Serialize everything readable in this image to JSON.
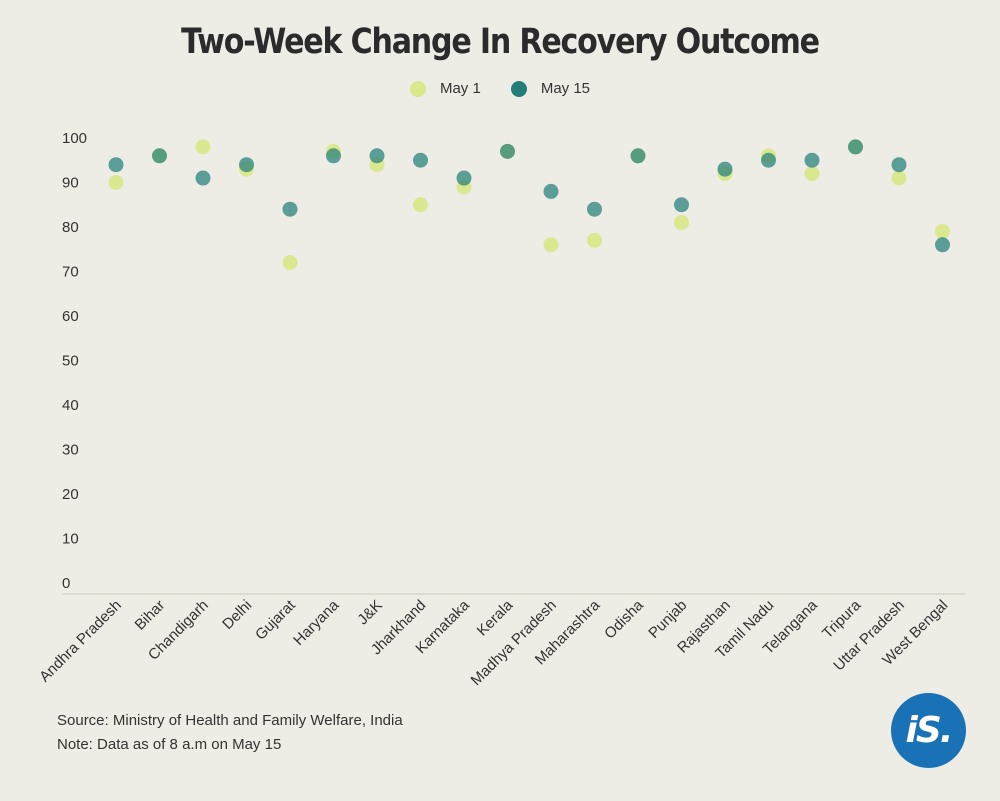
{
  "title": "Two-Week Change In Recovery Outcome",
  "legend": [
    {
      "label": "May 1",
      "color": "#d8e88a"
    },
    {
      "label": "May 15",
      "color": "#237e79"
    }
  ],
  "footer": {
    "source": "Source: Ministry of Health and Family Welfare, India",
    "note": "Note: Data as of 8 a.m on May 15"
  },
  "logo_text": "iS.",
  "chart_data": {
    "type": "scatter",
    "title": "Two-Week Change In Recovery Outcome",
    "categories": [
      "Andhra Pradesh",
      "Bihar",
      "Chandigarh",
      "Delhi",
      "Gujarat",
      "Haryana",
      "J&K",
      "Jharkhand",
      "Karnataka",
      "Kerala",
      "Madhya Pradesh",
      "Maharashtra",
      "Odisha",
      "Punjab",
      "Rajasthan",
      "Tamil Nadu",
      "Telangana",
      "Tripura",
      "Uttar Pradesh",
      "West Bengal"
    ],
    "series": [
      {
        "name": "May 1",
        "color": "#d8e88a",
        "values": [
          90,
          96,
          98,
          93,
          72,
          97,
          94,
          85,
          89,
          97,
          76,
          77,
          96,
          81,
          92,
          96,
          92,
          98,
          91,
          79
        ]
      },
      {
        "name": "May 15",
        "color": "#237e79",
        "values": [
          94,
          96,
          91,
          94,
          84,
          96,
          96,
          95,
          91,
          97,
          88,
          84,
          96,
          85,
          93,
          95,
          95,
          98,
          94,
          76
        ]
      }
    ],
    "yticks": [
      0,
      10,
      20,
      30,
      40,
      50,
      60,
      70,
      80,
      90,
      100
    ],
    "ylim": [
      0,
      100
    ],
    "grid": false,
    "legend_position": "top-center"
  }
}
